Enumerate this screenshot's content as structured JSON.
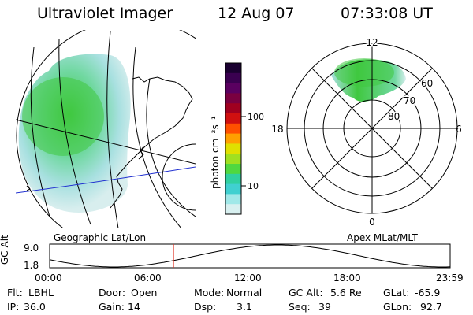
{
  "header": {
    "instrument": "Ultraviolet Imager",
    "date": "12 Aug 07",
    "time": "07:33:08 UT"
  },
  "colorbar": {
    "unit_label": "photon cm⁻²s⁻¹",
    "ticks": [
      "100",
      "10"
    ],
    "colors": [
      "#1a0030",
      "#3a0050",
      "#5a0060",
      "#7a0040",
      "#a00020",
      "#d01010",
      "#ff5000",
      "#ffa000",
      "#e0e000",
      "#a0e020",
      "#50d840",
      "#30d0a0",
      "#40d0d0",
      "#a0e8e8",
      "#d8f0f0"
    ]
  },
  "geo_map": {
    "label": "Geographic Lat/Lon",
    "aurora_colors": [
      "#40c840",
      "#70d8a0",
      "#a8e0e0",
      "#d8eeee"
    ]
  },
  "polar_plot": {
    "label": "Apex MLat/MLT",
    "mlt_labels": {
      "top": "12",
      "left": "18",
      "right": "6",
      "bottom": "0"
    },
    "mlat_labels": [
      "60",
      "70",
      "80"
    ]
  },
  "altitude_strip": {
    "y_axis_label": "GC Alt",
    "y_ticks": [
      "9.0",
      "1.8"
    ],
    "x_ticks": [
      "00:00",
      "06:00",
      "12:00",
      "18:00",
      "23:59"
    ],
    "marker_color": "#e03020"
  },
  "info": {
    "row1": [
      {
        "label": "Flt:",
        "value": "LBHL"
      },
      {
        "label": "Door:",
        "value": "Open"
      },
      {
        "label": "Mode:",
        "value": "Normal"
      },
      {
        "label": "GC Alt:",
        "value": "5.6 Re"
      },
      {
        "label": "GLat:",
        "value": "-65.9"
      }
    ],
    "row2": [
      {
        "label": "IP:",
        "value": "36.0"
      },
      {
        "label": "Gain:",
        "value": "14"
      },
      {
        "label": "Dsp:",
        "value": "3.1"
      },
      {
        "label": "Seq:",
        "value": "39"
      },
      {
        "label": "GLon:",
        "value": "92.7"
      }
    ]
  }
}
